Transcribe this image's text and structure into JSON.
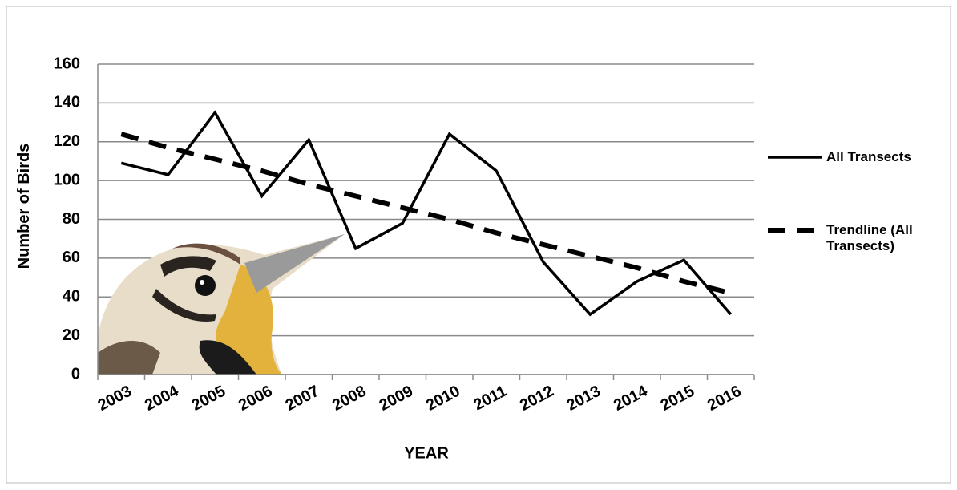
{
  "chart_data": {
    "type": "line",
    "categories": [
      "2003",
      "2004",
      "2005",
      "2006",
      "2007",
      "2008",
      "2009",
      "2010",
      "2011",
      "2012",
      "2013",
      "2014",
      "2015",
      "2016"
    ],
    "series": [
      {
        "name": "All Transects",
        "color": "#000000",
        "dash": false,
        "values": [
          109,
          103,
          135,
          92,
          121,
          65,
          78,
          124,
          105,
          58,
          31,
          48,
          59,
          31
        ]
      },
      {
        "name": "Trendline (All Transects)",
        "color": "#000000",
        "dash": true,
        "values": [
          124,
          117,
          111,
          105,
          98,
          92,
          86,
          80,
          73,
          67,
          61,
          55,
          48,
          42
        ]
      }
    ],
    "x_label": "YEAR",
    "y_label": "Number of Birds",
    "ylim": [
      0,
      160
    ],
    "yticks": [
      0,
      20,
      40,
      60,
      80,
      100,
      120,
      140,
      160
    ],
    "grid": true,
    "legend": "right"
  }
}
